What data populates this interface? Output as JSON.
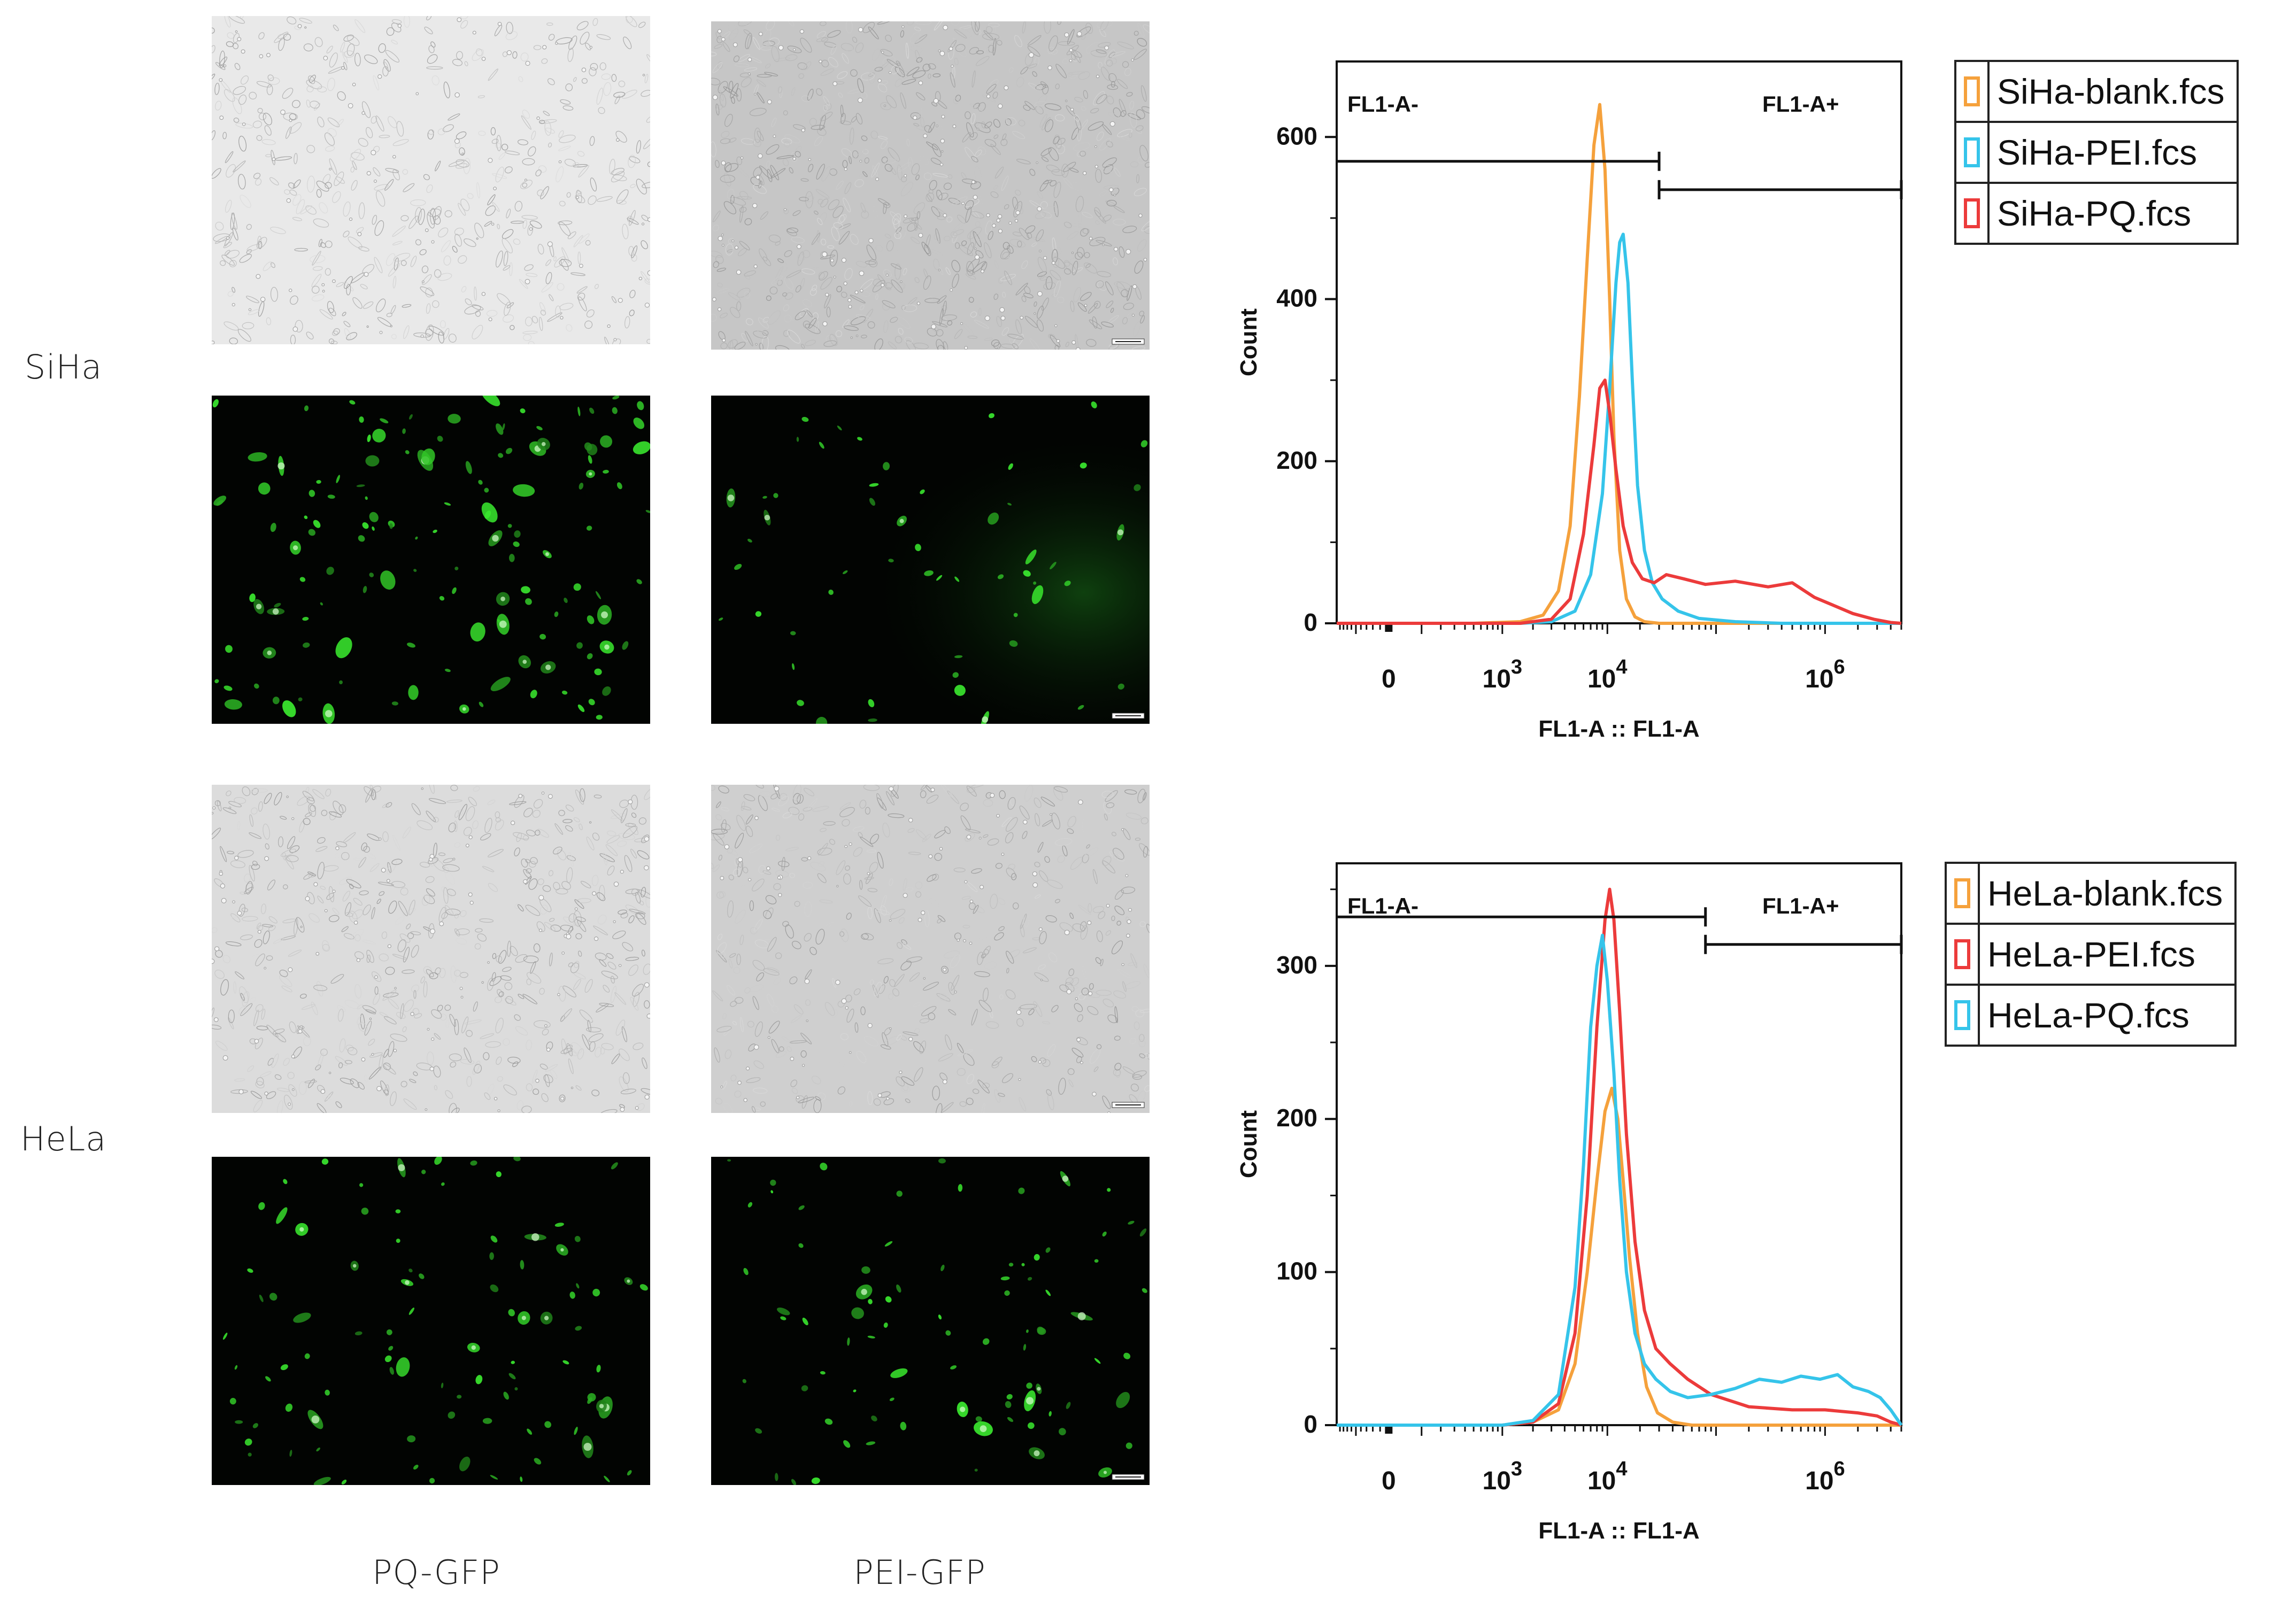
{
  "row_labels": {
    "siha": "SiHa",
    "hela": "HeLa"
  },
  "col_labels": {
    "pq": "PQ-GFP",
    "pei": "PEI-GFP"
  },
  "micrographs": [
    {
      "name": "siha-pq-brightfield",
      "kind": "brightfield",
      "seed": 11,
      "bg": "#e9e9e9",
      "density": 520
    },
    {
      "name": "siha-pei-brightfield",
      "kind": "brightfield",
      "seed": 23,
      "bg": "#c6c6c6",
      "density": 900,
      "scalebar": true
    },
    {
      "name": "siha-pq-fluorescence",
      "kind": "fluorescence",
      "seed": 37,
      "density": 140
    },
    {
      "name": "siha-pei-fluorescence",
      "kind": "fluorescence",
      "seed": 41,
      "density": 55,
      "scalebar": true
    },
    {
      "name": "hela-pq-brightfield",
      "kind": "brightfield",
      "seed": 53,
      "bg": "#dcdcdc",
      "density": 620
    },
    {
      "name": "hela-pei-brightfield",
      "kind": "brightfield",
      "seed": 67,
      "bg": "#cfcfcf",
      "density": 520,
      "scalebar": true
    },
    {
      "name": "hela-pq-fluorescence",
      "kind": "fluorescence",
      "seed": 71,
      "density": 95
    },
    {
      "name": "hela-pei-fluorescence",
      "kind": "fluorescence",
      "seed": 83,
      "density": 85,
      "scalebar": true
    }
  ],
  "chart_data": [
    {
      "type": "line",
      "xlabel": "FL1-A :: FL1-A",
      "ylabel": "Count",
      "ylim": [
        0,
        680
      ],
      "yticks": [
        0,
        200,
        400,
        600
      ],
      "xscale": "biexponential",
      "xlim": [
        -200,
        5000000
      ],
      "xtick_labels": [
        {
          "value": 0,
          "base": "0",
          "exp": ""
        },
        {
          "value": 1000,
          "base": "10",
          "exp": "3"
        },
        {
          "value": 10000,
          "base": "10",
          "exp": "4"
        },
        {
          "value": 1000000,
          "base": "10",
          "exp": "6"
        }
      ],
      "gates": [
        {
          "label": "FL1-A-",
          "from": -200,
          "to": 30000,
          "y": 570
        },
        {
          "label": "FL1-A+",
          "from": 30000,
          "to": 5000000,
          "y": 535
        }
      ],
      "grid": false,
      "legend_position": "right",
      "series": [
        {
          "name": "SiHa-blank.fcs",
          "color": "#f5a13c",
          "x": [
            -200,
            500,
            1500,
            2500,
            3500,
            4500,
            5500,
            6500,
            7500,
            8500,
            9500,
            10500,
            11500,
            13000,
            15000,
            18000,
            22000,
            30000,
            50000,
            100000,
            1000000,
            5000000
          ],
          "y": [
            0,
            0,
            2,
            10,
            40,
            120,
            280,
            450,
            590,
            640,
            560,
            400,
            230,
            90,
            30,
            8,
            2,
            0,
            0,
            0,
            0,
            0
          ]
        },
        {
          "name": "SiHa-PEI.fcs",
          "color": "#35c4ea",
          "x": [
            -200,
            1500,
            3000,
            5000,
            7000,
            9000,
            10500,
            12000,
            13000,
            14000,
            15500,
            17000,
            19000,
            22000,
            26000,
            32000,
            45000,
            70000,
            150000,
            400000,
            5000000
          ],
          "y": [
            0,
            0,
            2,
            15,
            60,
            160,
            290,
            420,
            470,
            480,
            420,
            300,
            170,
            90,
            50,
            30,
            15,
            6,
            2,
            0,
            0
          ]
        },
        {
          "name": "SiHa-PQ.fcs",
          "color": "#ec3b3b",
          "x": [
            -200,
            1500,
            3000,
            4500,
            6000,
            7500,
            8500,
            9500,
            10500,
            12000,
            14000,
            17000,
            21000,
            27000,
            35000,
            50000,
            80000,
            150000,
            300000,
            500000,
            800000,
            1200000,
            1800000,
            2800000,
            4000000,
            5000000
          ],
          "y": [
            0,
            0,
            5,
            30,
            110,
            220,
            290,
            300,
            260,
            190,
            120,
            75,
            55,
            50,
            60,
            55,
            48,
            52,
            45,
            50,
            32,
            22,
            12,
            5,
            1,
            0
          ]
        }
      ]
    },
    {
      "type": "line",
      "xlabel": "FL1-A :: FL1-A",
      "ylabel": "Count",
      "ylim": [
        0,
        360
      ],
      "yticks": [
        0,
        100,
        200,
        300
      ],
      "xscale": "biexponential",
      "xlim": [
        -200,
        5000000
      ],
      "xtick_labels": [
        {
          "value": 0,
          "base": "0",
          "exp": ""
        },
        {
          "value": 1000,
          "base": "10",
          "exp": "3"
        },
        {
          "value": 10000,
          "base": "10",
          "exp": "4"
        },
        {
          "value": 1000000,
          "base": "10",
          "exp": "6"
        }
      ],
      "gates": [
        {
          "label": "FL1-A-",
          "from": -200,
          "to": 80000,
          "y": 332
        },
        {
          "label": "FL1-A+",
          "from": 80000,
          "to": 5000000,
          "y": 314
        }
      ],
      "grid": false,
      "legend_position": "right",
      "series": [
        {
          "name": "HeLa-blank.fcs",
          "color": "#f5a13c",
          "x": [
            -200,
            1000,
            2000,
            3500,
            5000,
            6500,
            8000,
            9500,
            11000,
            12500,
            14000,
            16000,
            19000,
            23000,
            29000,
            40000,
            60000,
            5000000
          ],
          "y": [
            0,
            0,
            2,
            10,
            40,
            100,
            160,
            205,
            220,
            200,
            160,
            110,
            60,
            25,
            8,
            2,
            0,
            0
          ]
        },
        {
          "name": "HeLa-PEI.fcs",
          "color": "#ec3b3b",
          "x": [
            -200,
            1000,
            2000,
            3500,
            5000,
            6500,
            8000,
            9500,
            10500,
            11500,
            13000,
            15000,
            18000,
            22000,
            28000,
            38000,
            55000,
            90000,
            200000,
            500000,
            1000000,
            2000000,
            3000000,
            4000000,
            5000000
          ],
          "y": [
            0,
            0,
            2,
            14,
            60,
            150,
            260,
            330,
            350,
            330,
            270,
            190,
            120,
            75,
            50,
            40,
            30,
            20,
            12,
            10,
            10,
            8,
            6,
            2,
            0
          ]
        },
        {
          "name": "HeLa-PQ.fcs",
          "color": "#35c4ea",
          "x": [
            -200,
            1000,
            2000,
            3500,
            5000,
            6000,
            7000,
            8000,
            9000,
            10000,
            11500,
            13000,
            15000,
            18000,
            22000,
            28000,
            38000,
            55000,
            90000,
            150000,
            250000,
            400000,
            600000,
            900000,
            1300000,
            1800000,
            2500000,
            3200000,
            4000000,
            5000000
          ],
          "y": [
            0,
            0,
            3,
            20,
            90,
            170,
            260,
            300,
            320,
            290,
            230,
            160,
            100,
            60,
            40,
            30,
            22,
            18,
            20,
            24,
            30,
            28,
            32,
            30,
            33,
            25,
            22,
            18,
            10,
            0
          ]
        }
      ]
    }
  ]
}
